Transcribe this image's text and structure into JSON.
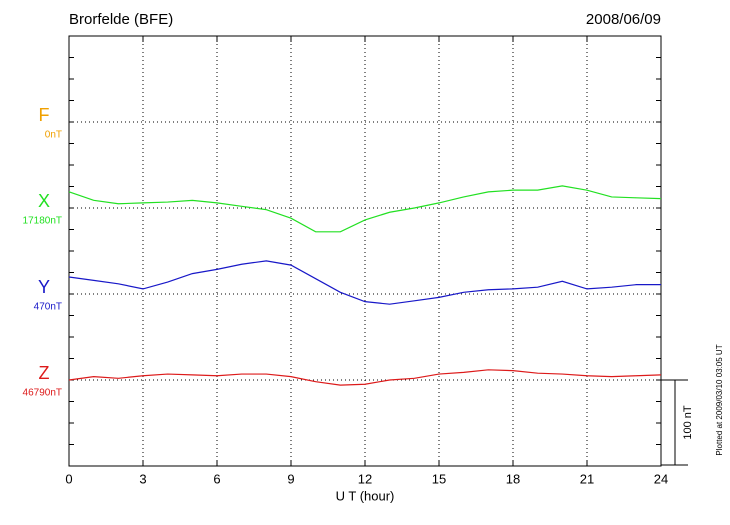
{
  "chart_data": {
    "type": "line",
    "title": "Brorfelde (BFE)",
    "date": "2008/06/09",
    "x_label": "U T (hour)",
    "footer": "Plotted at 2009/03/10 03:05 UT",
    "x": [
      0,
      1,
      2,
      3,
      4,
      5,
      6,
      7,
      8,
      9,
      10,
      11,
      12,
      13,
      14,
      15,
      16,
      17,
      18,
      19,
      20,
      21,
      22,
      23,
      24
    ],
    "xlim": [
      0,
      24
    ],
    "xticks": [
      0,
      3,
      6,
      9,
      12,
      15,
      18,
      21,
      24
    ],
    "grid": true,
    "scale_bar": {
      "value": 100,
      "label": "100 nT"
    },
    "series": [
      {
        "name": "F",
        "color": "#f0a000",
        "baseline": 0,
        "baseline_label": "0nT",
        "values": [
          null,
          null,
          null,
          null,
          null,
          null,
          null,
          null,
          null,
          null,
          null,
          null,
          null,
          null,
          null,
          null,
          null,
          null,
          null,
          null,
          null,
          null,
          null,
          null,
          null
        ]
      },
      {
        "name": "X",
        "color": "#22e022",
        "baseline": 17180,
        "baseline_label": "17180nT",
        "values": [
          17199,
          17189,
          17185,
          17186,
          17187,
          17189,
          17186,
          17182,
          17178,
          17168,
          17152,
          17152,
          17166,
          17175,
          17180,
          17186,
          17193,
          17199,
          17201,
          17201,
          17206,
          17201,
          17193,
          17192,
          17191
        ]
      },
      {
        "name": "Y",
        "color": "#1818c8",
        "baseline": 470,
        "baseline_label": "470nT",
        "values": [
          490,
          486,
          482,
          476,
          484,
          494,
          499,
          505,
          509,
          504,
          488,
          472,
          461,
          458,
          462,
          466,
          472,
          475,
          476,
          478,
          485,
          476,
          478,
          481,
          481
        ]
      },
      {
        "name": "Z",
        "color": "#dd1a1a",
        "baseline": 46790,
        "baseline_label": "46790nT",
        "values": [
          46790,
          46794,
          46792,
          46795,
          46797,
          46796,
          46795,
          46797,
          46797,
          46794,
          46788,
          46784,
          46785,
          46790,
          46792,
          46797,
          46799,
          46802,
          46801,
          46798,
          46797,
          46795,
          46794,
          46795,
          46796
        ]
      }
    ]
  }
}
